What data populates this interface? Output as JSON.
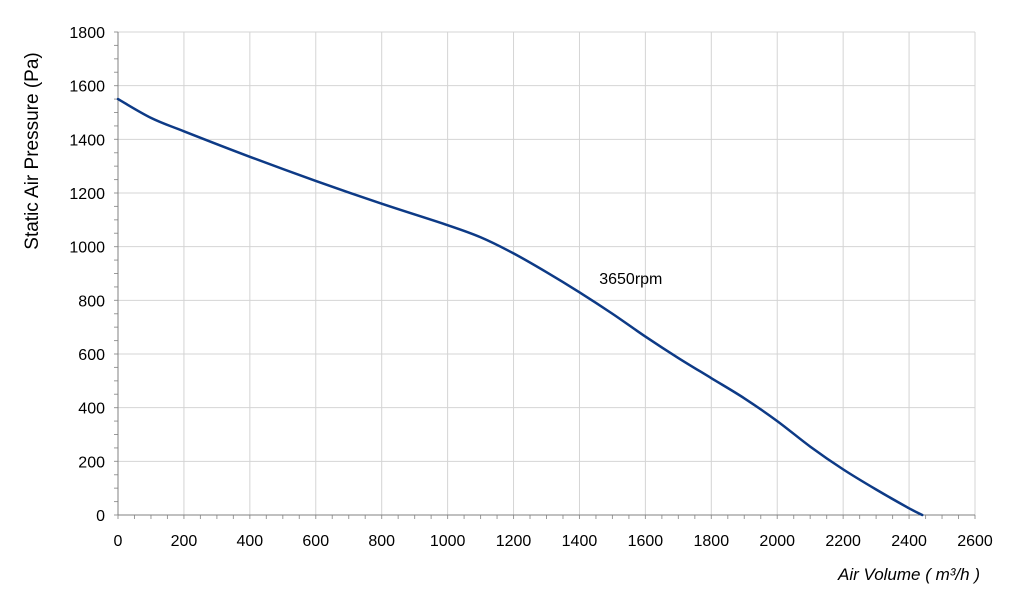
{
  "chart_data": {
    "type": "line",
    "title": "",
    "xlabel": "Air Volume ( m³/h )",
    "ylabel": "Static Air Pressure  (Pa)",
    "xlim": [
      0,
      2600
    ],
    "ylim": [
      0,
      1800
    ],
    "x_ticks": [
      0,
      200,
      400,
      600,
      800,
      1000,
      1200,
      1400,
      1600,
      1800,
      2000,
      2200,
      2400,
      2600
    ],
    "y_ticks": [
      0,
      200,
      400,
      600,
      800,
      1000,
      1200,
      1400,
      1600,
      1800
    ],
    "grid": true,
    "series": [
      {
        "name": "",
        "color": "#0d3a86",
        "x": [
          0,
          100,
          200,
          400,
          600,
          800,
          1000,
          1100,
          1200,
          1300,
          1400,
          1500,
          1600,
          1700,
          1800,
          1900,
          2000,
          2100,
          2200,
          2300,
          2400,
          2440
        ],
        "y": [
          1550,
          1480,
          1430,
          1335,
          1245,
          1160,
          1080,
          1035,
          975,
          905,
          830,
          750,
          665,
          585,
          510,
          435,
          350,
          255,
          170,
          95,
          25,
          0
        ]
      }
    ],
    "annotations": [
      {
        "text": "3650rpm",
        "x": 1460,
        "y": 860
      }
    ]
  }
}
